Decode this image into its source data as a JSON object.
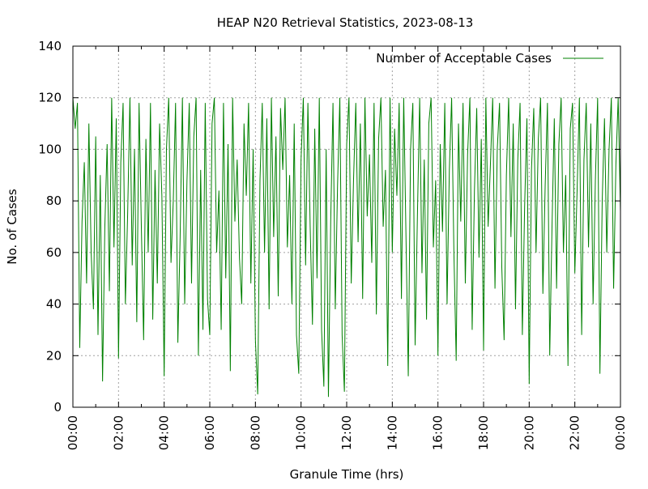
{
  "chart_data": {
    "type": "line",
    "title": "HEAP N20 Retrieval Statistics, 2023-08-13",
    "xlabel": "Granule Time (hrs)",
    "ylabel": "No. of Cases",
    "xlim": [
      "00:00",
      "24:00"
    ],
    "ylim": [
      0,
      140
    ],
    "x_ticks": [
      "00:00",
      "02:00",
      "04:00",
      "06:00",
      "08:00",
      "10:00",
      "12:00",
      "14:00",
      "16:00",
      "18:00",
      "20:00",
      "22:00",
      "00:00"
    ],
    "y_ticks": [
      "0",
      "20",
      "40",
      "60",
      "80",
      "100",
      "120",
      "140"
    ],
    "grid": true,
    "legend_position": "top-right",
    "series": [
      {
        "name": "Number of Acceptable Cases",
        "color": "#008000",
        "x_hours": [
          0.0,
          0.1,
          0.2,
          0.3,
          0.4,
          0.5,
          0.6,
          0.7,
          0.8,
          0.9,
          1.0,
          1.1,
          1.2,
          1.3,
          1.4,
          1.5,
          1.6,
          1.7,
          1.8,
          1.9,
          2.0,
          2.1,
          2.2,
          2.3,
          2.4,
          2.5,
          2.6,
          2.7,
          2.8,
          2.9,
          3.0,
          3.1,
          3.2,
          3.3,
          3.4,
          3.5,
          3.6,
          3.7,
          3.8,
          3.9,
          4.0,
          4.1,
          4.2,
          4.3,
          4.4,
          4.5,
          4.6,
          4.7,
          4.8,
          4.9,
          5.0,
          5.1,
          5.2,
          5.3,
          5.4,
          5.5,
          5.6,
          5.7,
          5.8,
          5.9,
          6.0,
          6.1,
          6.2,
          6.3,
          6.4,
          6.5,
          6.6,
          6.7,
          6.8,
          6.9,
          7.0,
          7.1,
          7.2,
          7.3,
          7.4,
          7.5,
          7.6,
          7.7,
          7.8,
          7.9,
          8.0,
          8.1,
          8.2,
          8.3,
          8.4,
          8.5,
          8.6,
          8.7,
          8.8,
          8.9,
          9.0,
          9.1,
          9.2,
          9.3,
          9.4,
          9.5,
          9.6,
          9.7,
          9.8,
          9.9,
          10.0,
          10.1,
          10.2,
          10.3,
          10.4,
          10.5,
          10.6,
          10.7,
          10.8,
          10.9,
          11.0,
          11.1,
          11.2,
          11.3,
          11.4,
          11.5,
          11.6,
          11.7,
          11.8,
          11.9,
          12.0,
          12.1,
          12.2,
          12.3,
          12.4,
          12.5,
          12.6,
          12.7,
          12.8,
          12.9,
          13.0,
          13.1,
          13.2,
          13.3,
          13.4,
          13.5,
          13.6,
          13.7,
          13.8,
          13.9,
          14.0,
          14.1,
          14.2,
          14.3,
          14.4,
          14.5,
          14.6,
          14.7,
          14.8,
          14.9,
          15.0,
          15.1,
          15.2,
          15.3,
          15.4,
          15.5,
          15.6,
          15.7,
          15.8,
          15.9,
          16.0,
          16.1,
          16.2,
          16.3,
          16.4,
          16.5,
          16.6,
          16.7,
          16.8,
          16.9,
          17.0,
          17.1,
          17.2,
          17.3,
          17.4,
          17.5,
          17.6,
          17.7,
          17.8,
          17.9,
          18.0,
          18.1,
          18.2,
          18.3,
          18.4,
          18.5,
          18.6,
          18.7,
          18.8,
          18.9,
          19.0,
          19.1,
          19.2,
          19.3,
          19.4,
          19.5,
          19.6,
          19.7,
          19.8,
          19.9,
          20.0,
          20.1,
          20.2,
          20.3,
          20.4,
          20.5,
          20.6,
          20.7,
          20.8,
          20.9,
          21.0,
          21.1,
          21.2,
          21.3,
          21.4,
          21.5,
          21.6,
          21.7,
          21.8,
          21.9,
          22.0,
          22.1,
          22.2,
          22.3,
          22.4,
          22.5,
          22.6,
          22.7,
          22.8,
          22.9,
          23.0,
          23.1,
          23.2,
          23.3,
          23.4,
          23.5,
          23.6,
          23.7,
          23.8,
          23.9,
          24.0
        ],
        "values": [
          120,
          108,
          118,
          23,
          72,
          95,
          48,
          110,
          60,
          38,
          105,
          28,
          90,
          10,
          70,
          102,
          45,
          120,
          62,
          112,
          19,
          95,
          118,
          40,
          75,
          120,
          55,
          100,
          33,
          118,
          70,
          26,
          104,
          60,
          118,
          34,
          92,
          48,
          110,
          82,
          12,
          100,
          120,
          56,
          80,
          118,
          25,
          66,
          120,
          40,
          88,
          118,
          48,
          105,
          120,
          20,
          92,
          30,
          118,
          42,
          28,
          110,
          120,
          60,
          84,
          30,
          118,
          50,
          102,
          14,
          120,
          72,
          96,
          58,
          40,
          110,
          82,
          118,
          48,
          100,
          26,
          5,
          88,
          118,
          60,
          112,
          38,
          120,
          66,
          105,
          43,
          116,
          92,
          120,
          62,
          90,
          40,
          110,
          28,
          13,
          96,
          120,
          55,
          118,
          70,
          32,
          108,
          50,
          120,
          30,
          8,
          100,
          4,
          72,
          118,
          38,
          86,
          120,
          28,
          6,
          102,
          120,
          48,
          88,
          118,
          64,
          110,
          42,
          120,
          74,
          98,
          56,
          118,
          36,
          104,
          120,
          70,
          92,
          16,
          120,
          60,
          108,
          82,
          118,
          42,
          120,
          66,
          12,
          100,
          118,
          24,
          74,
          120,
          52,
          96,
          34,
          110,
          120,
          62,
          88,
          20,
          102,
          68,
          118,
          40,
          92,
          120,
          60,
          18,
          110,
          72,
          118,
          48,
          98,
          120,
          30,
          84,
          116,
          58,
          104,
          22,
          120,
          70,
          94,
          120,
          46,
          100,
          118,
          54,
          26,
          90,
          120,
          66,
          110,
          38,
          96,
          118,
          28,
          78,
          112,
          9,
          92,
          116,
          60,
          104,
          120,
          44,
          86,
          118,
          20,
          70,
          112,
          46,
          102,
          120,
          60,
          90,
          16,
          108,
          118,
          52,
          84,
          120,
          28,
          96,
          118,
          62,
          110,
          40,
          88,
          120,
          13,
          80,
          112,
          60,
          100,
          120,
          46,
          94,
          120,
          76
        ]
      }
    ]
  }
}
